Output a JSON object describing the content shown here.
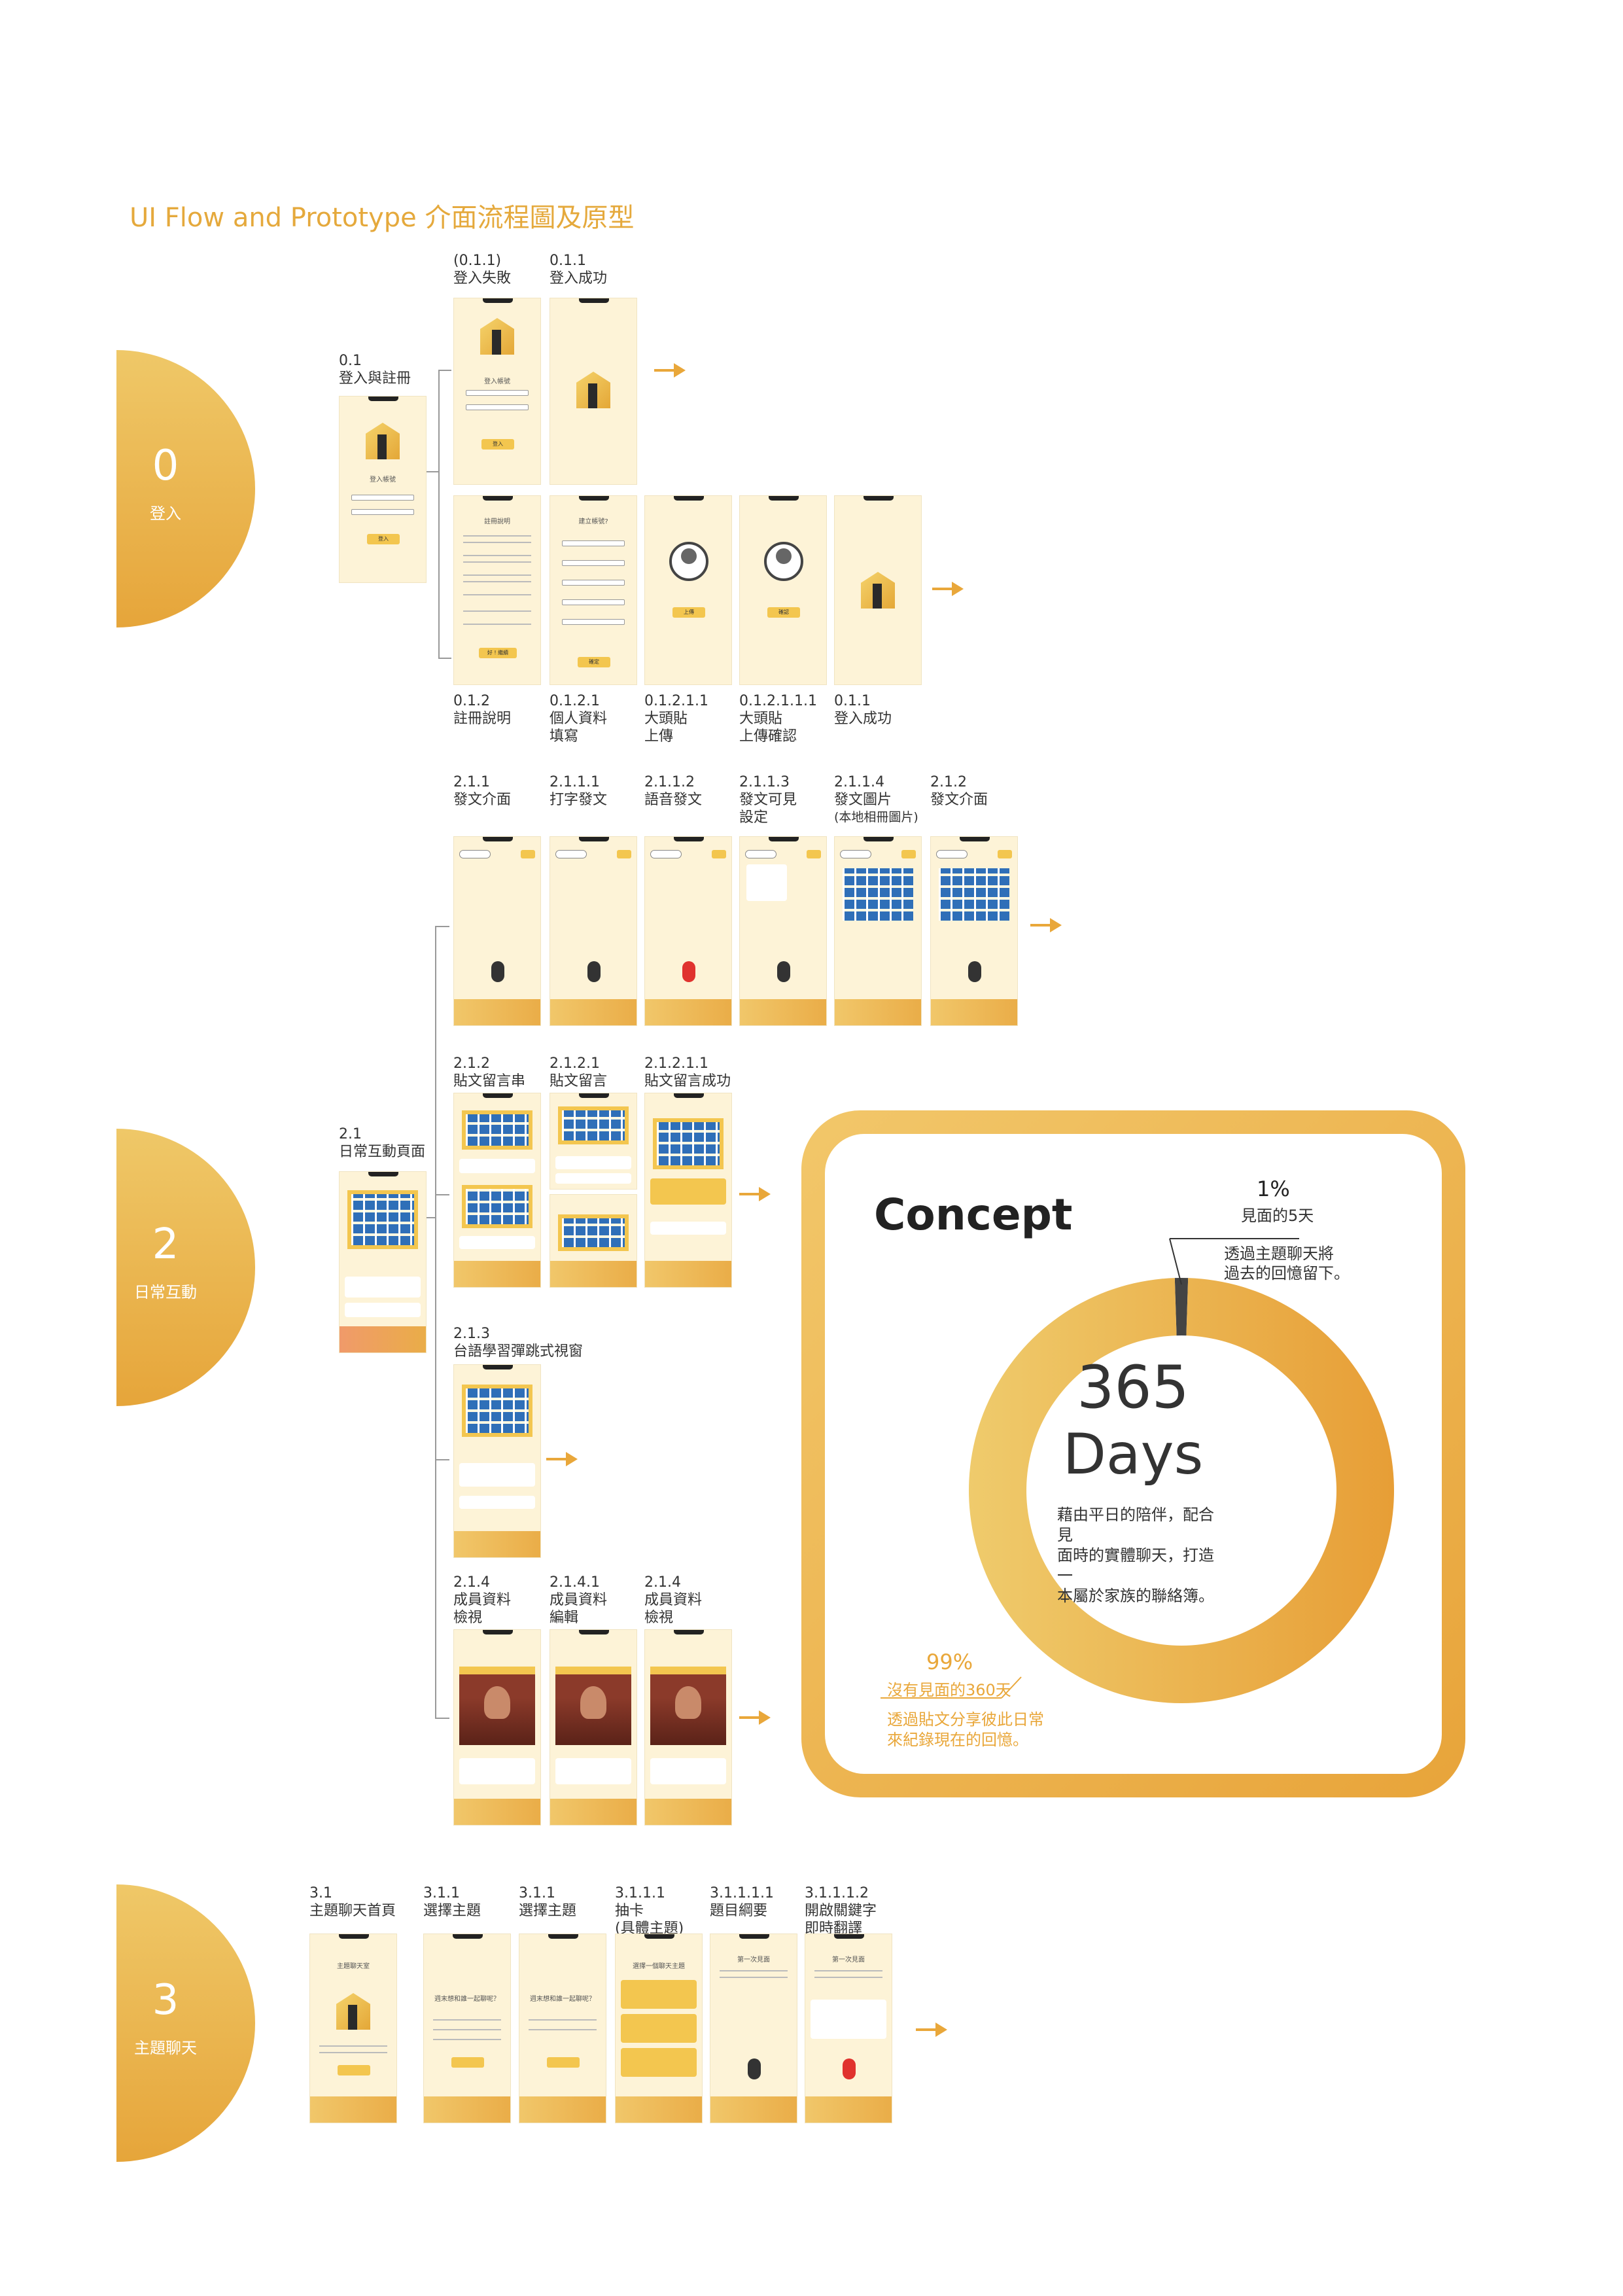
{
  "title": "UI Flow and Prototype 介面流程圖及原型",
  "sections": [
    {
      "num": "0",
      "name": "登入"
    },
    {
      "num": "2",
      "name": "日常互動"
    },
    {
      "num": "3",
      "name": "主題聊天"
    }
  ],
  "labels": {
    "l01": [
      "0.1",
      "登入與註冊"
    ],
    "l011f": [
      "(0.1.1)",
      "登入失敗"
    ],
    "l011s": [
      "0.1.1",
      "登入成功"
    ],
    "l012": [
      "0.1.2",
      "註冊說明"
    ],
    "l0121": [
      "0.1.2.1",
      "個人資料",
      "填寫"
    ],
    "l01211": [
      "0.1.2.1.1",
      "大頭貼",
      "上傳"
    ],
    "l012111": [
      "0.1.2.1.1.1",
      "大頭貼",
      "上傳確認"
    ],
    "l011b": [
      "0.1.1",
      "登入成功"
    ],
    "l211": [
      "2.1.1",
      "發文介面"
    ],
    "l2111": [
      "2.1.1.1",
      "打字發文"
    ],
    "l2112": [
      "2.1.1.2",
      "語音發文"
    ],
    "l2113": [
      "2.1.1.3",
      "發文可見",
      "設定"
    ],
    "l2114": [
      "2.1.1.4",
      "發文圖片",
      "(本地相冊圖片)"
    ],
    "l212a": [
      "2.1.2",
      "發文介面"
    ],
    "l21": [
      "2.1",
      "日常互動頁面"
    ],
    "l212": [
      "2.1.2",
      "貼文留言串"
    ],
    "l2121": [
      "2.1.2.1",
      "貼文留言"
    ],
    "l21211": [
      "2.1.2.1.1",
      "貼文留言成功"
    ],
    "l213": [
      "2.1.3",
      "台語學習彈跳式視窗"
    ],
    "l214a": [
      "2.1.4",
      "成員資料",
      "檢視"
    ],
    "l2141": [
      "2.1.4.1",
      "成員資料",
      "編輯"
    ],
    "l214b": [
      "2.1.4",
      "成員資料",
      "檢視"
    ],
    "l31": [
      "3.1",
      "主題聊天首頁"
    ],
    "l311a": [
      "3.1.1",
      "選擇主題"
    ],
    "l311b": [
      "3.1.1",
      "選擇主題"
    ],
    "l3111": [
      "3.1.1.1",
      "抽卡",
      "(具體主題)"
    ],
    "l31111": [
      "3.1.1.1.1",
      "題目綱要"
    ],
    "l311112": [
      "3.1.1.1.2",
      "開啟關鍵字",
      "即時翻譯"
    ]
  },
  "screens": {
    "login_title": "登入帳號",
    "login_btn": "登入",
    "register_title": "註冊說明",
    "register_btn": "好 ! 繼續",
    "profile_title": "建立帳號?",
    "profile_btn": "確定",
    "upload_btn": "上傳",
    "confirm_btn": "確認",
    "theme_home_title": "主題聊天室",
    "theme_q": "週末想和誰一起聊呢？",
    "theme_card_title": "選擇一個聊天主題",
    "first_meet": "第一次見面"
  },
  "concept": {
    "heading": "Concept",
    "center_number": "365",
    "center_unit": "Days",
    "center_desc": [
      "藉由平日的陪伴，配合見",
      "面時的實體聊天，打造一",
      "本屬於家族的聯絡簿。"
    ],
    "small_pct": "1%",
    "small_label": "見面的5天",
    "small_desc": [
      "透過主題聊天將",
      "過去的回憶留下。"
    ],
    "big_pct": "99%",
    "big_label": "沒有見面的360天",
    "big_desc": [
      "透過貼文分享彼此日常",
      "來紀錄現在的回憶。"
    ]
  },
  "chart_data": {
    "type": "pie",
    "categories": [
      "見面的5天",
      "沒有見面的360天"
    ],
    "values": [
      1,
      99
    ],
    "title": "Concept"
  },
  "colors": {
    "accent": "#E9A73A",
    "light": "#F2C76A",
    "dark_slice": "#444444"
  }
}
